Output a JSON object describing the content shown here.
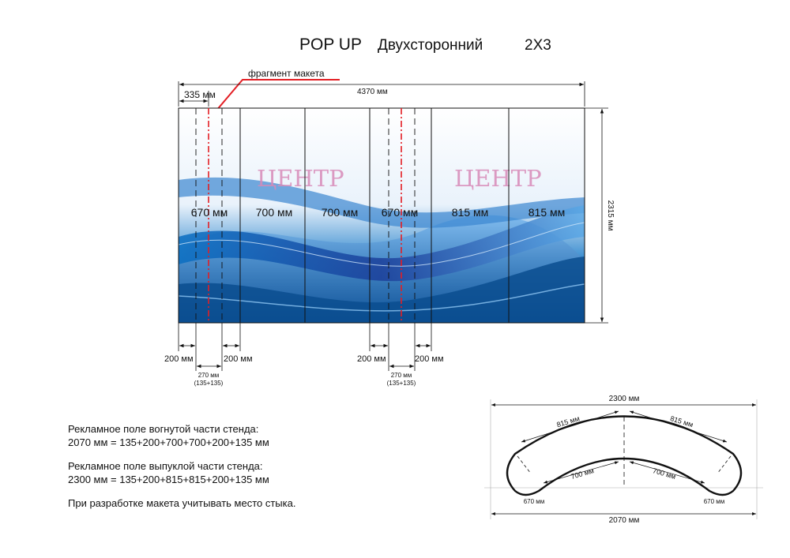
{
  "title": {
    "main": "POP UP",
    "sub": "Двухсторонний",
    "size": "2X3"
  },
  "callout": "фрагмент макета",
  "dims": {
    "total_width": "4370 мм",
    "left_offset": "335 мм",
    "height": "2315 мм",
    "watermark": "ЦЕНТР",
    "panels": [
      "670 мм",
      "700 мм",
      "700 мм",
      "670 мм",
      "815 мм",
      "815 мм"
    ],
    "bottom": {
      "left": "200 мм",
      "right": "200 мм",
      "joint": "270 мм",
      "joint_sum": "(135+135)"
    }
  },
  "plan": {
    "top_width": "2300 мм",
    "bottom_width": "2070 мм",
    "outer_left": "815 мм",
    "outer_right": "815 мм",
    "inner_left": "700 мм",
    "inner_right": "700 мм",
    "end_left": "670 мм",
    "end_right": "670 мм"
  },
  "notes": {
    "concave_title": "Рекламное поле вогнутой части стенда:",
    "concave_formula": "2070 мм = 135+200+700+700+200+135 мм",
    "convex_title": "Рекламное поле выпуклой части стенда:",
    "convex_formula": "2300 мм = 135+200+815+815+200+135 мм",
    "remark": "При разработке макета учитывать место стыка."
  },
  "colors": {
    "accent_red": "#e31e24",
    "watermark": "#d88ab8",
    "wave_blue": "#1a6fb4"
  }
}
